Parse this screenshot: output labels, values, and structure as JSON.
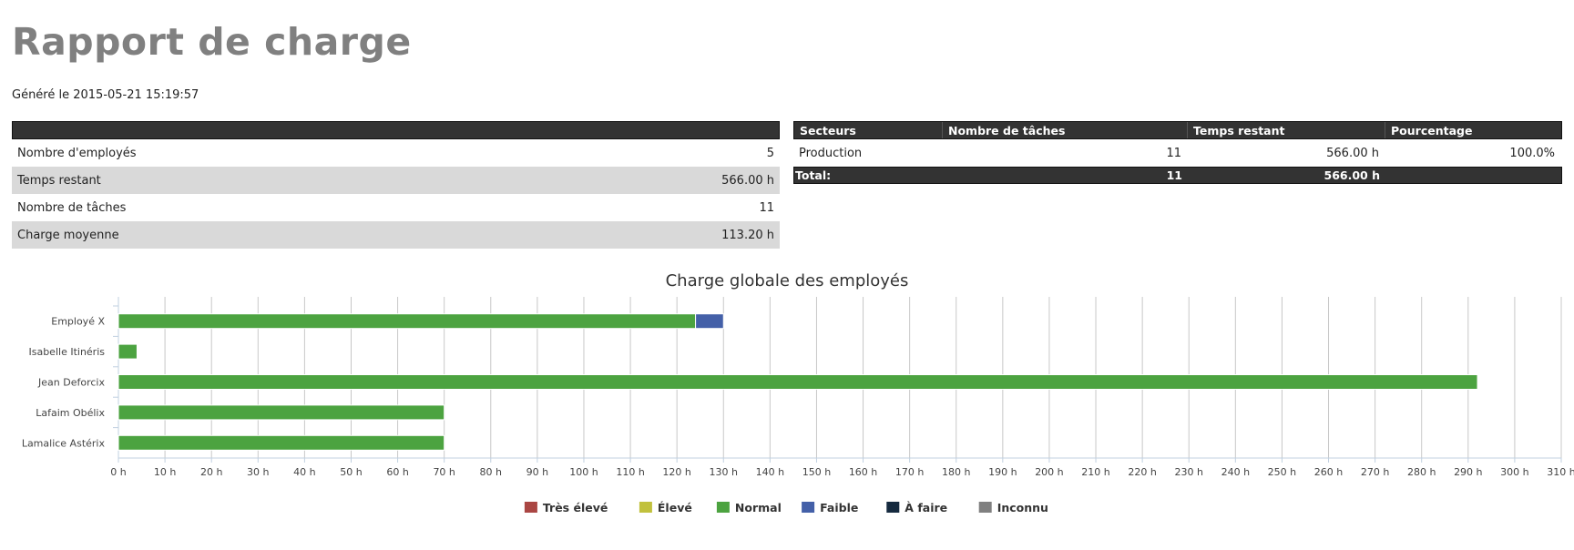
{
  "page": {
    "title": "Rapport de charge",
    "generated": "Généré le 2015-05-21 15:19:57"
  },
  "summary": {
    "rows": [
      {
        "label": "Nombre d'employés",
        "value": "5"
      },
      {
        "label": "Temps restant",
        "value": "566.00 h"
      },
      {
        "label": "Nombre de tâches",
        "value": "11"
      },
      {
        "label": "Charge moyenne",
        "value": "113.20 h"
      }
    ]
  },
  "sectors": {
    "headers": [
      "Secteurs",
      "Nombre de tâches",
      "Temps restant",
      "Pourcentage"
    ],
    "rows": [
      {
        "name": "Production",
        "tasks": "11",
        "remaining": "566.00 h",
        "percent": "100.0%"
      }
    ],
    "total": {
      "label": "Total:",
      "tasks": "11",
      "remaining": "566.00 h"
    }
  },
  "chart_data": {
    "type": "bar",
    "orientation": "horizontal",
    "stacked": true,
    "title": "Charge globale des employés",
    "categories": [
      "Employé X",
      "Isabelle Itinéris",
      "Jean Deforcix",
      "Lafaim Obélix",
      "Lamalice Astérix"
    ],
    "series": [
      {
        "name": "Très élevé",
        "color": "#aa4643",
        "values": [
          0,
          0,
          0,
          0,
          0
        ]
      },
      {
        "name": "Élevé",
        "color": "#c1c13d",
        "values": [
          0,
          0,
          0,
          0,
          0
        ]
      },
      {
        "name": "Normal",
        "color": "#4ca340",
        "values": [
          124,
          4,
          292,
          70,
          70
        ]
      },
      {
        "name": "Faible",
        "color": "#4460a8",
        "values": [
          6,
          0,
          0,
          0,
          0
        ]
      },
      {
        "name": "À faire",
        "color": "#152a3f",
        "values": [
          0,
          0,
          0,
          0,
          0
        ]
      },
      {
        "name": "Inconnu",
        "color": "#808080",
        "values": [
          0,
          0,
          0,
          0,
          0
        ]
      }
    ],
    "xlim": [
      0,
      310
    ],
    "xtick_step": 10,
    "xtick_suffix": " h",
    "grid": true,
    "legend_position": "bottom-center"
  }
}
